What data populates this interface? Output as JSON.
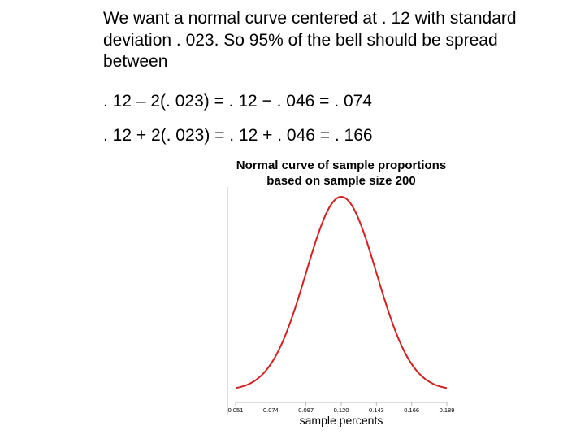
{
  "slide": {
    "paragraph": "We want a normal curve centered at . 12 with standard deviation . 023.  So 95% of the bell should be spread between",
    "equation_low": ". 12 – 2(. 023) = . 12 − . 046 = . 074",
    "equation_high": ". 12 + 2(. 023) = . 12 + . 046 = . 166"
  },
  "chart_data": {
    "type": "line",
    "title_line1": "Normal curve of sample proportions",
    "title_line2": "based on sample size 200",
    "xlabel": "sample percents",
    "ylabel": "",
    "distribution": {
      "mean": 0.12,
      "sd": 0.023
    },
    "xlim": [
      0.051,
      0.189
    ],
    "xticks": [
      0.051,
      0.074,
      0.097,
      0.12,
      0.143,
      0.166,
      0.189
    ],
    "xtick_labels": [
      "0.051",
      "0.074",
      "0.097",
      "0.120",
      "0.143",
      "0.166",
      "0.189"
    ],
    "grid": false,
    "curve_color": "#d62020",
    "axis_color": "#b8b8b8"
  }
}
